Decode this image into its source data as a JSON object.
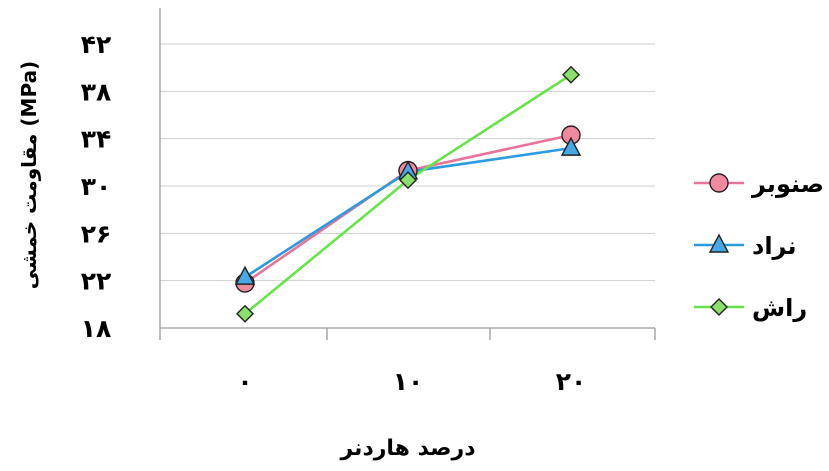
{
  "chart_data": {
    "type": "line",
    "categories": [
      "۰",
      "۱۰",
      "۲۰"
    ],
    "y_tick_labels": [
      "۱۸",
      "۲۲",
      "۲۶",
      "۳۰",
      "۳۴",
      "۳۸",
      "۴۲"
    ],
    "y_ticks": [
      18,
      22,
      26,
      30,
      34,
      38,
      42
    ],
    "ylim": [
      18,
      42
    ],
    "xlabel": "درصد هاردنر",
    "ylabel": "مقاومت خمشی (MPa)",
    "grid": true,
    "legend_position": "right",
    "series": [
      {
        "name": "صنوبر",
        "values": [
          21.8,
          31.3,
          34.3
        ],
        "color": "#e8729a",
        "marker": "circle",
        "marker_fill": "#f08a9e"
      },
      {
        "name": "نراد",
        "values": [
          22.3,
          31.2,
          33.2
        ],
        "color": "#2b9be0",
        "marker": "triangle",
        "marker_fill": "#46a9e6"
      },
      {
        "name": "راش",
        "values": [
          19.2,
          30.5,
          39.4
        ],
        "color": "#66e34a",
        "marker": "diamond",
        "marker_fill": "#8ae06a"
      }
    ]
  }
}
